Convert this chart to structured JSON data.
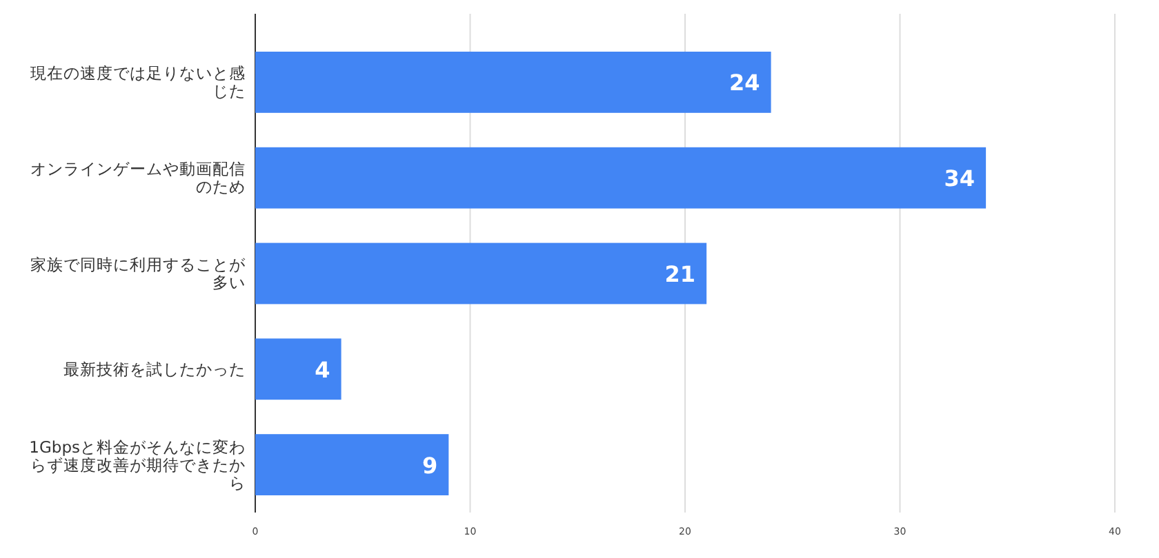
{
  "chart_data": {
    "type": "bar",
    "orientation": "horizontal",
    "categories": [
      "現在の速度では足りないと感じた",
      "オンラインゲームや動画配信のため",
      "家族で同時に利用することが多い",
      "最新技術を試したかった",
      "1Gbpsと料金がそんなに変わらず速度改善が期待できたから"
    ],
    "values": [
      24,
      34,
      21,
      4,
      9
    ],
    "color": "#4285f4",
    "xlim": [
      0,
      40
    ],
    "xticks": [
      0,
      10,
      20,
      30,
      40
    ],
    "grid": "x",
    "data_labels": true
  }
}
